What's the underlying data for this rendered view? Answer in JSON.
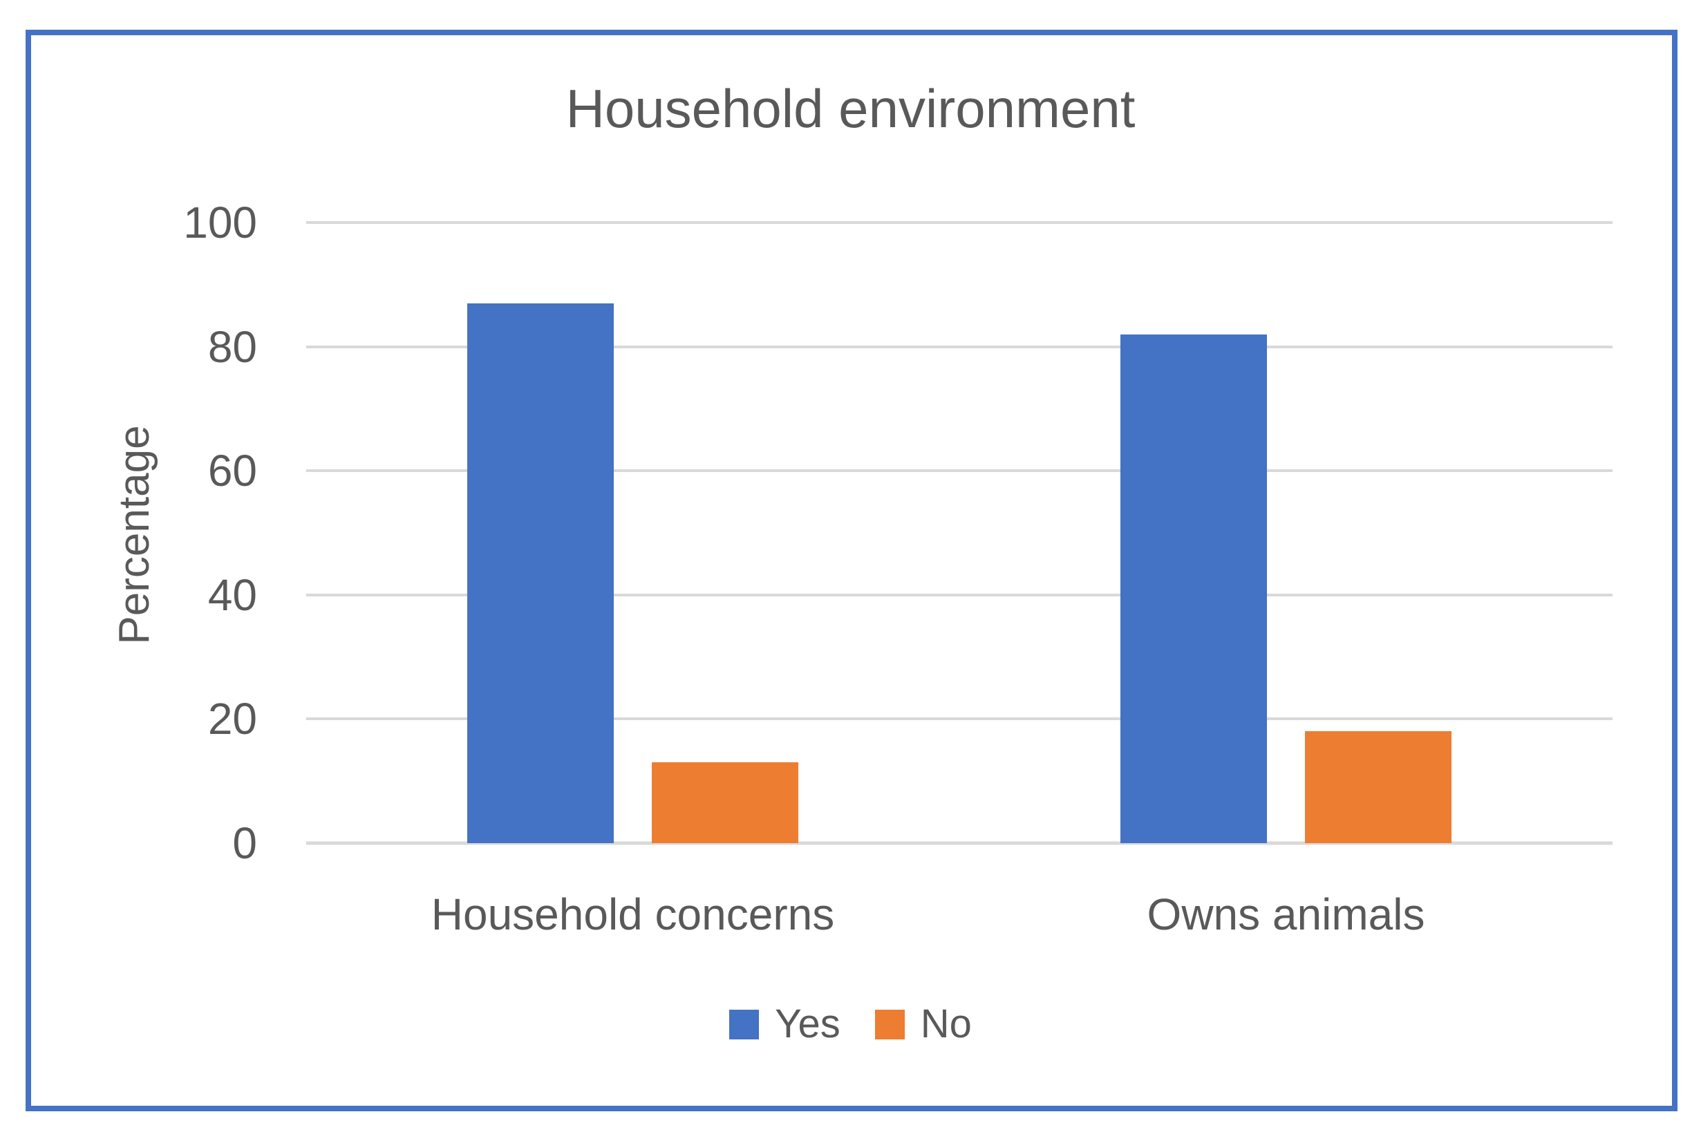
{
  "page": {
    "background": "#FFFFFF",
    "border_color": "#4472C4",
    "text_color": "#595959"
  },
  "chart_data": {
    "type": "bar",
    "title": "Household environment",
    "ylabel": "Percentage",
    "xlabel": "",
    "ylim": [
      0,
      100
    ],
    "yticks": [
      0,
      20,
      40,
      60,
      80,
      100
    ],
    "grid": true,
    "gridline_color": "#D9D9D9",
    "legend_position": "bottom",
    "categories": [
      "Household concerns",
      "Owns animals"
    ],
    "series": [
      {
        "name": "Yes",
        "color": "#4472C4",
        "values": [
          87,
          82
        ]
      },
      {
        "name": "No",
        "color": "#ED7D31",
        "values": [
          13,
          18
        ]
      }
    ]
  }
}
